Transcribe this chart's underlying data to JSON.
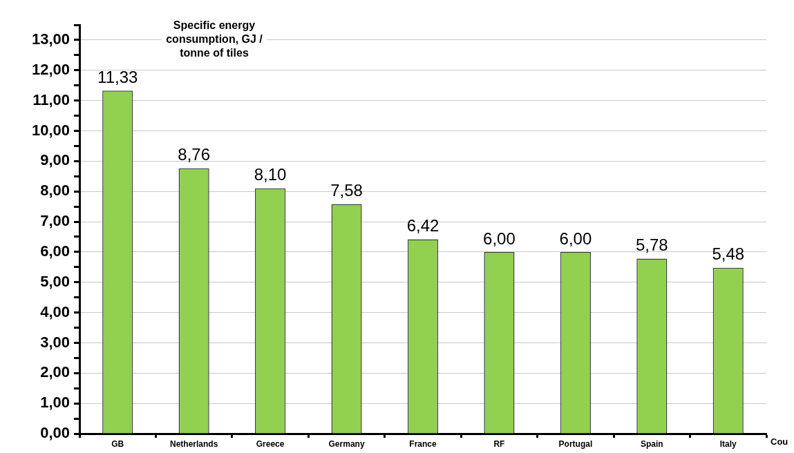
{
  "chart_data": {
    "type": "bar",
    "title": "Specific energy consumption, GJ / tonne of tiles",
    "xlabel": "Cou",
    "categories": [
      "GB",
      "Netherlands",
      "Greece",
      "Germany",
      "France",
      "RF",
      "Portugal",
      "Spain",
      "Italy"
    ],
    "values": [
      11.33,
      8.76,
      8.1,
      7.58,
      6.42,
      6.0,
      6.0,
      5.78,
      5.48
    ],
    "value_labels": [
      "11,33",
      "8,76",
      "8,10",
      "7,58",
      "6,42",
      "6,00",
      "6,00",
      "5,78",
      "5,48"
    ],
    "color": "#92d050",
    "ylim": [
      0,
      13.5
    ],
    "yticks": [
      {
        "value": 0,
        "label": "0,00"
      },
      {
        "value": 0.5,
        "label": null
      },
      {
        "value": 1,
        "label": "1,00"
      },
      {
        "value": 1.5,
        "label": null
      },
      {
        "value": 2,
        "label": "2,00"
      },
      {
        "value": 2.5,
        "label": null
      },
      {
        "value": 3,
        "label": "3,00"
      },
      {
        "value": 3.5,
        "label": null
      },
      {
        "value": 4,
        "label": "4,00"
      },
      {
        "value": 4.5,
        "label": null
      },
      {
        "value": 5,
        "label": "5,00"
      },
      {
        "value": 5.5,
        "label": null
      },
      {
        "value": 6,
        "label": "6,00"
      },
      {
        "value": 6.5,
        "label": null
      },
      {
        "value": 7,
        "label": "7,00"
      },
      {
        "value": 7.5,
        "label": null
      },
      {
        "value": 8,
        "label": "8,00"
      },
      {
        "value": 8.5,
        "label": null
      },
      {
        "value": 9,
        "label": "9,00"
      },
      {
        "value": 9.5,
        "label": null
      },
      {
        "value": 10,
        "label": "10,00"
      },
      {
        "value": 10.5,
        "label": null
      },
      {
        "value": 11,
        "label": "11,00"
      },
      {
        "value": 11.5,
        "label": null
      },
      {
        "value": 12,
        "label": "12,00"
      },
      {
        "value": 12.5,
        "label": null
      },
      {
        "value": 13,
        "label": "13,00"
      },
      {
        "value": 13.5,
        "label": null
      }
    ],
    "grid": "y",
    "legend": false
  }
}
